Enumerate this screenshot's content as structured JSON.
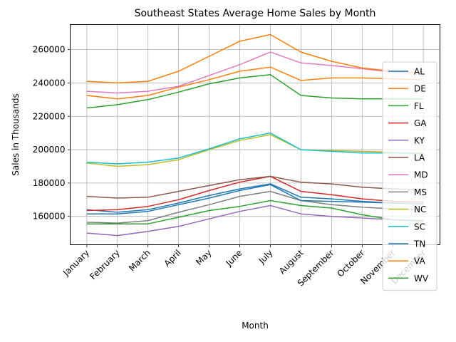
{
  "chart_data": {
    "type": "line",
    "title": "Southeast States Average Home Sales by Month",
    "xlabel": "Month",
    "ylabel": "Sales in Thousands",
    "ylim": [
      143000,
      275000
    ],
    "yticks": [
      160000,
      180000,
      200000,
      220000,
      240000,
      260000
    ],
    "grid": true,
    "legend_position": "right",
    "categories": [
      "January",
      "February",
      "March",
      "April",
      "May",
      "June",
      "July",
      "August",
      "September",
      "October",
      "November",
      "December"
    ],
    "series": [
      {
        "name": "AL",
        "color": "#1f77b4",
        "values": [
          164000,
          162500,
          164000,
          168000,
          172500,
          176500,
          179500,
          171500,
          170500,
          169000,
          168000,
          167500
        ]
      },
      {
        "name": "DE",
        "color": "#ff7f0e",
        "values": [
          232500,
          230500,
          232500,
          237500,
          242000,
          247000,
          249500,
          241500,
          243000,
          243000,
          242500,
          242000
        ]
      },
      {
        "name": "FL",
        "color": "#2ca02c",
        "values": [
          225000,
          227000,
          230000,
          234500,
          239500,
          243000,
          245000,
          232500,
          231000,
          230500,
          230500,
          230500
        ]
      },
      {
        "name": "GA",
        "color": "#d62728",
        "values": [
          163500,
          164000,
          166000,
          170000,
          175500,
          180500,
          184000,
          175000,
          173000,
          170500,
          169000,
          168500
        ]
      },
      {
        "name": "KY",
        "color": "#9467bd",
        "values": [
          150000,
          148500,
          151000,
          154000,
          158500,
          163000,
          166500,
          161500,
          160000,
          159000,
          158000,
          157000
        ]
      },
      {
        "name": "LA",
        "color": "#8c564b",
        "values": [
          172000,
          171000,
          171500,
          175000,
          178500,
          182000,
          184000,
          180500,
          179500,
          177500,
          176500,
          176000
        ]
      },
      {
        "name": "MD",
        "color": "#e377c2",
        "values": [
          235000,
          234000,
          235000,
          238000,
          244500,
          251000,
          258500,
          252000,
          250500,
          248500,
          246500,
          246000
        ]
      },
      {
        "name": "MS",
        "color": "#7f7f7f",
        "values": [
          156500,
          156000,
          157500,
          162500,
          167000,
          172000,
          175000,
          169500,
          167000,
          165500,
          164500,
          164000
        ]
      },
      {
        "name": "NC",
        "color": "#bcbd22",
        "values": [
          192000,
          190000,
          191000,
          194000,
          200000,
          205500,
          209000,
          200000,
          199500,
          199000,
          198500,
          198000
        ]
      },
      {
        "name": "SC",
        "color": "#17becf",
        "values": [
          192500,
          191500,
          192500,
          195000,
          200500,
          206500,
          210000,
          200000,
          199000,
          198000,
          198000,
          197500
        ]
      },
      {
        "name": "TN",
        "color": "#1f77b4",
        "values": [
          161500,
          161500,
          163000,
          167000,
          171000,
          175500,
          179000,
          169500,
          169000,
          168500,
          168000,
          167500
        ]
      },
      {
        "name": "VA",
        "color": "#ff7f0e",
        "values": [
          241000,
          240000,
          241000,
          247000,
          256000,
          265000,
          269000,
          258500,
          253000,
          249000,
          247000,
          246000
        ]
      },
      {
        "name": "WV",
        "color": "#2ca02c",
        "values": [
          155500,
          155500,
          155500,
          159500,
          163500,
          166000,
          169500,
          166500,
          165000,
          161000,
          158000,
          157500
        ]
      }
    ]
  }
}
